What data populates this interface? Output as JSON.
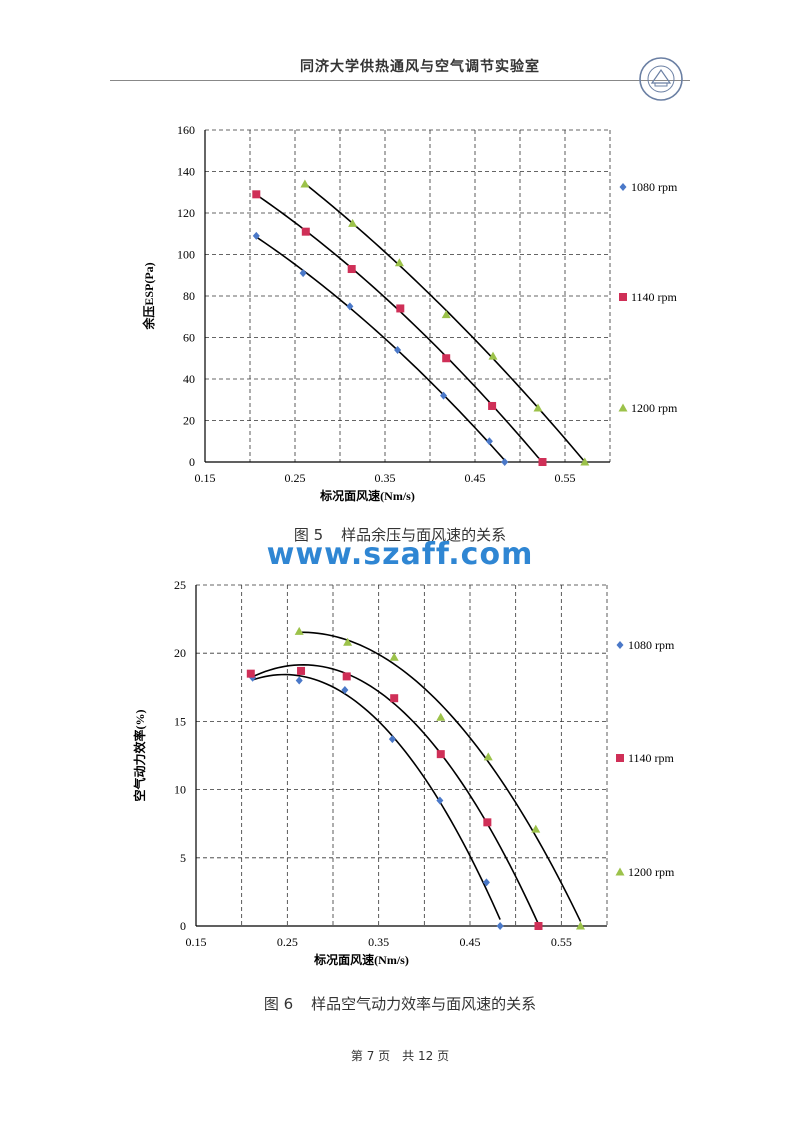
{
  "header": {
    "title": "同济大学供热通风与空气调节实验室",
    "seal_lines": [
      "TONGJI",
      "UNIVERSITY",
      "1907"
    ]
  },
  "colors": {
    "s1080": "#4a78c8",
    "s1140": "#cf2f57",
    "s1200": "#9cc24a",
    "grid": "#333333",
    "curve": "#000000",
    "watermark": "#2f86d3"
  },
  "watermark": "www.szaff.com",
  "chart_data": [
    {
      "type": "scatter",
      "title": "",
      "xlabel": "标况面风速(Nm/s)",
      "ylabel": "余压ESP(Pa)",
      "xlim": [
        0.15,
        0.6
      ],
      "ylim": [
        0,
        160
      ],
      "xticks": [
        "0.15",
        "0.25",
        "0.35",
        "0.45",
        "0.55"
      ],
      "yticks": [
        "0",
        "20",
        "40",
        "60",
        "80",
        "100",
        "120",
        "140",
        "160"
      ],
      "legend_position": "right",
      "trendline": "polynomial",
      "series": [
        {
          "name": "1080 rpm",
          "marker": "diamond",
          "x": [
            0.207,
            0.259,
            0.311,
            0.364,
            0.415,
            0.466,
            0.483
          ],
          "y": [
            109,
            91,
            75,
            54,
            32,
            10,
            0
          ]
        },
        {
          "name": "1140 rpm",
          "marker": "square",
          "x": [
            0.207,
            0.262,
            0.313,
            0.367,
            0.418,
            0.469,
            0.525
          ],
          "y": [
            129,
            111,
            93,
            74,
            50,
            27,
            0
          ]
        },
        {
          "name": "1200 rpm",
          "marker": "triangle",
          "x": [
            0.261,
            0.314,
            0.366,
            0.418,
            0.47,
            0.52,
            0.572
          ],
          "y": [
            134,
            115,
            96,
            71,
            51,
            26,
            0
          ]
        }
      ]
    },
    {
      "type": "scatter",
      "title": "",
      "xlabel": "标况面风速(Nm/s)",
      "ylabel": "空气动力效率(%)",
      "xlim": [
        0.15,
        0.6
      ],
      "ylim": [
        0,
        25
      ],
      "xticks": [
        "0.15",
        "0.25",
        "0.35",
        "0.45",
        "0.55"
      ],
      "yticks": [
        "0",
        "5",
        "10",
        "15",
        "20",
        "25"
      ],
      "legend_position": "right",
      "trendline": "polynomial",
      "series": [
        {
          "name": "1080 rpm",
          "marker": "diamond",
          "x": [
            0.212,
            0.263,
            0.313,
            0.365,
            0.417,
            0.468,
            0.483
          ],
          "y": [
            18.2,
            18.0,
            17.3,
            13.7,
            9.2,
            3.2,
            0
          ]
        },
        {
          "name": "1140 rpm",
          "marker": "square",
          "x": [
            0.21,
            0.265,
            0.315,
            0.367,
            0.418,
            0.469,
            0.525
          ],
          "y": [
            18.5,
            18.7,
            18.3,
            16.7,
            12.6,
            7.6,
            0
          ]
        },
        {
          "name": "1200 rpm",
          "marker": "triangle",
          "x": [
            0.263,
            0.316,
            0.367,
            0.418,
            0.47,
            0.522,
            0.571
          ],
          "y": [
            21.6,
            20.8,
            19.7,
            15.3,
            12.4,
            7.1,
            0
          ]
        }
      ]
    }
  ],
  "captions": [
    {
      "fig": "图 5",
      "text": "样品余压与面风速的关系"
    },
    {
      "fig": "图 6",
      "text": "样品空气动力效率与面风速的关系"
    }
  ],
  "footer": {
    "page": "第 7 页",
    "total": "共 12 页"
  }
}
